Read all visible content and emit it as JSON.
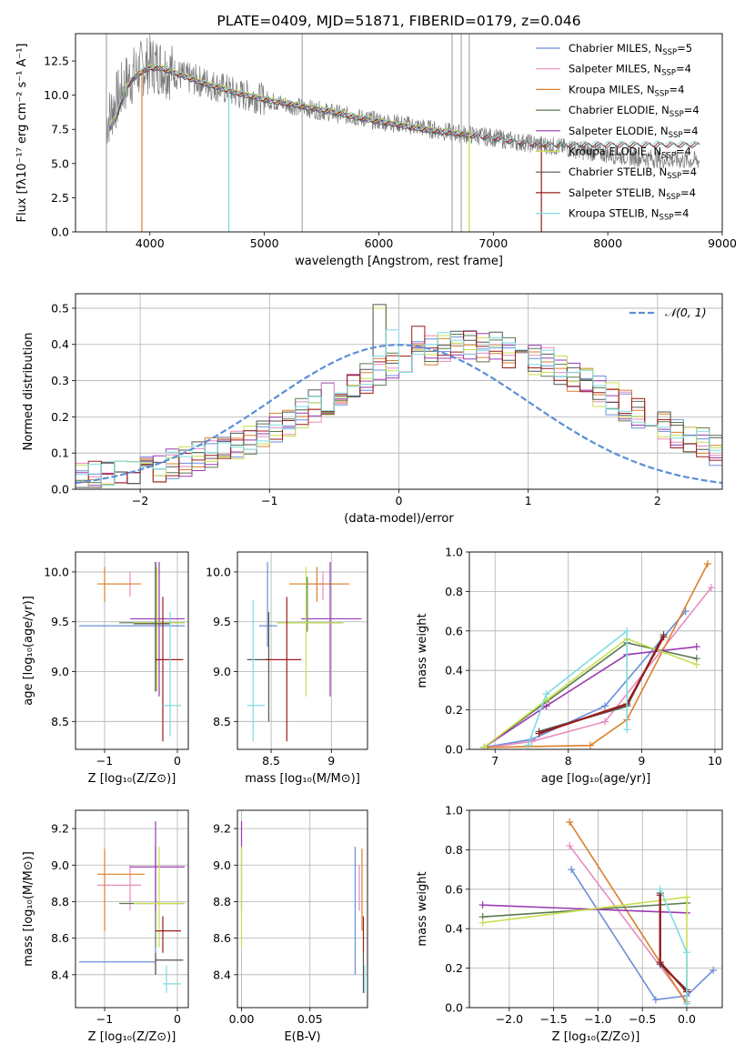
{
  "colors": {
    "Chabrier MILES": "#6a8fd8",
    "Salpeter MILES": "#e88cbf",
    "Kroupa MILES": "#d9802a",
    "Chabrier ELODIE": "#5a7a50",
    "Salpeter ELODIE": "#9a3ab0",
    "Kroupa ELODIE": "#c8e050",
    "Chabrier STELIB": "#555555",
    "Salpeter STELIB": "#9b1c1c",
    "Kroupa STELIB": "#7edbe0"
  },
  "chart_data": [
    {
      "type": "line",
      "title": "PLATE=0409, MJD=51871, FIBERID=0179, z=0.046",
      "xlabel": "wavelength [Angstrom, rest frame]",
      "ylabel": "Flux [fλ10⁻¹⁷ erg cm⁻² s⁻¹ A⁻¹]",
      "xlim": [
        3350,
        9000
      ],
      "ylim": [
        0,
        14.5
      ],
      "xticks": [
        4000,
        5000,
        6000,
        7000,
        8000,
        9000
      ],
      "yticks": [
        0.0,
        2.5,
        5.0,
        7.5,
        10.0,
        12.5
      ],
      "grid": false,
      "legend_position": "top-right",
      "legend": [
        {
          "model": "Chabrier MILES",
          "label": "Chabrier MILES, N",
          "sub": "SSP",
          "tail": "=5"
        },
        {
          "model": "Salpeter MILES",
          "label": "Salpeter MILES, N",
          "sub": "SSP",
          "tail": "=4"
        },
        {
          "model": "Kroupa MILES",
          "label": "Kroupa MILES, N",
          "sub": "SSP",
          "tail": "=4"
        },
        {
          "model": "Chabrier ELODIE",
          "label": "Chabrier ELODIE, N",
          "sub": "SSP",
          "tail": "=4"
        },
        {
          "model": "Salpeter ELODIE",
          "label": "Salpeter ELODIE, N",
          "sub": "SSP",
          "tail": "=4"
        },
        {
          "model": "Kroupa ELODIE",
          "label": "Kroupa ELODIE, N",
          "sub": "SSP",
          "tail": "=4"
        },
        {
          "model": "Chabrier STELIB",
          "label": "Chabrier STELIB, N",
          "sub": "SSP",
          "tail": "=4"
        },
        {
          "model": "Salpeter STELIB",
          "label": "Salpeter STELIB, N",
          "sub": "SSP",
          "tail": "=4"
        },
        {
          "model": "Kroupa STELIB",
          "label": "Kroupa STELIB, N",
          "sub": "SSP",
          "tail": "=4"
        }
      ],
      "data_series": {
        "name": "data",
        "x": [
          3620,
          3700,
          3800,
          3900,
          4000,
          4100,
          4200,
          4300,
          4400,
          4500,
          4600,
          4700,
          4800,
          4900,
          5000,
          5200,
          5400,
          5600,
          5800,
          6000,
          6200,
          6400,
          6600,
          6800,
          7000,
          7200,
          7400,
          7600,
          7800,
          8000,
          8200,
          8500,
          8800
        ],
        "y": [
          8.0,
          9.5,
          11.0,
          11.8,
          12.3,
          12.1,
          11.7,
          11.3,
          11.1,
          10.9,
          10.6,
          10.3,
          10.0,
          9.9,
          9.7,
          9.3,
          9.0,
          8.7,
          8.4,
          8.1,
          7.9,
          7.6,
          7.3,
          7.1,
          6.9,
          6.6,
          6.4,
          6.2,
          5.9,
          5.7,
          5.5,
          5.3,
          5.2
        ]
      },
      "model_x": [
        3650,
        3700,
        3800,
        3900,
        4000,
        4100,
        4200,
        4300,
        4400,
        4500,
        4600,
        4700,
        4800,
        4900,
        5000,
        5200,
        5400,
        5600,
        5800,
        6000,
        6200,
        6400,
        6600,
        6800,
        7000,
        7200,
        7400
      ],
      "model_y": [
        7.6,
        8.3,
        10.7,
        11.6,
        12.0,
        12.0,
        11.7,
        11.4,
        11.1,
        10.8,
        10.6,
        10.3,
        10.1,
        9.9,
        9.7,
        9.4,
        9.1,
        8.8,
        8.4,
        8.1,
        7.8,
        7.5,
        7.3,
        7.1,
        6.9,
        6.6,
        6.4
      ],
      "model_ends": {
        "Chabrier MILES": 7420,
        "Salpeter MILES": 7420,
        "Kroupa MILES": 7420,
        "Chabrier ELODIE": 6800,
        "Salpeter ELODIE": 6800,
        "Kroupa ELODIE": 6800,
        "Chabrier STELIB": 8800,
        "Salpeter STELIB": 8800,
        "Kroupa STELIB": 8800
      },
      "model_drops": [
        {
          "model": "Kroupa STELIB",
          "x": 4690
        },
        {
          "model": "Kroupa MILES",
          "x": 3930
        },
        {
          "model": "Kroupa ELODIE",
          "x": 6790
        },
        {
          "model": "Salpeter STELIB",
          "x": 7420
        }
      ],
      "data_spikes": [
        3620,
        5330,
        6640,
        6720,
        6790
      ]
    },
    {
      "type": "histogram",
      "xlabel": "(data-model)/error",
      "ylabel": "Normed distribution",
      "xlim": [
        -2.5,
        2.5
      ],
      "ylim": [
        0,
        0.54
      ],
      "xticks": [
        -2,
        -1,
        0,
        1,
        2
      ],
      "yticks": [
        0.0,
        0.1,
        0.2,
        0.3,
        0.4,
        0.5
      ],
      "grid": true,
      "legend_position": "top-right",
      "reference_curve": {
        "label": "𝒩(0, 1)",
        "mean": 0,
        "sigma": 1,
        "color": "#5b8fd6"
      },
      "bin_width": 0.1,
      "bin_start": -2.5,
      "envelope": [
        0.03,
        0.035,
        0.04,
        0.045,
        0.05,
        0.055,
        0.06,
        0.07,
        0.08,
        0.09,
        0.1,
        0.11,
        0.125,
        0.14,
        0.155,
        0.17,
        0.19,
        0.21,
        0.23,
        0.25,
        0.27,
        0.29,
        0.31,
        0.33,
        0.35,
        0.36,
        0.37,
        0.38,
        0.39,
        0.395,
        0.4,
        0.395,
        0.39,
        0.38,
        0.37,
        0.36,
        0.35,
        0.33,
        0.31,
        0.29,
        0.27,
        0.25,
        0.23,
        0.21,
        0.19,
        0.17,
        0.155,
        0.14,
        0.125,
        0.11
      ],
      "peak_bins": [
        {
          "model": "Chabrier STELIB",
          "x": -0.2,
          "y": 0.51
        },
        {
          "model": "Kroupa ELODIE",
          "x": -0.2,
          "y": 0.5
        },
        {
          "model": "Kroupa STELIB",
          "x": -0.1,
          "y": 0.44
        },
        {
          "model": "Salpeter STELIB",
          "x": 0.1,
          "y": 0.45
        },
        {
          "model": "Salpeter MILES",
          "x": 0.7,
          "y": 0.4
        }
      ]
    },
    {
      "type": "errorbar",
      "xlabel": "Z [log₁₀(Z/Z⊙)]",
      "ylabel": "age  [log₁₀(age/yr)]",
      "xlim": [
        -1.4,
        0.15
      ],
      "ylim": [
        8.22,
        10.2
      ],
      "xticks": [
        -1,
        0
      ],
      "yticks": [
        8.5,
        9.0,
        9.5,
        10.0
      ],
      "grid": true,
      "points": [
        {
          "model": "Chabrier MILES",
          "x": -0.3,
          "y": 9.46,
          "xl": -1.35,
          "xh": 0.1,
          "yl": 8.8,
          "yh": 10.1
        },
        {
          "model": "Salpeter MILES",
          "x": -0.65,
          "y": 9.88,
          "xl": -1.0,
          "xh": -0.65,
          "yl": 9.75,
          "yh": 10.0
        },
        {
          "model": "Kroupa MILES",
          "x": -1.0,
          "y": 9.88,
          "xl": -1.1,
          "xh": -0.5,
          "yl": 9.7,
          "yh": 10.05
        },
        {
          "model": "Chabrier ELODIE",
          "x": -0.3,
          "y": 9.49,
          "xl": -0.8,
          "xh": 0.1,
          "yl": 8.8,
          "yh": 10.1
        },
        {
          "model": "Salpeter ELODIE",
          "x": -0.25,
          "y": 9.53,
          "xl": -0.65,
          "xh": 0.1,
          "yl": 8.75,
          "yh": 10.1
        },
        {
          "model": "Kroupa ELODIE",
          "x": -0.28,
          "y": 9.49,
          "xl": -0.6,
          "xh": 0.1,
          "yl": 8.8,
          "yh": 10.05
        },
        {
          "model": "Chabrier STELIB",
          "x": -0.3,
          "y": 9.48,
          "xl": -0.6,
          "xh": -0.1,
          "yl": 8.8,
          "yh": 10.1
        },
        {
          "model": "Salpeter STELIB",
          "x": -0.2,
          "y": 9.12,
          "xl": -0.3,
          "xh": 0.08,
          "yl": 8.3,
          "yh": 9.75
        },
        {
          "model": "Kroupa STELIB",
          "x": -0.1,
          "y": 8.66,
          "xl": -0.2,
          "xh": 0.05,
          "yl": 8.35,
          "yh": 9.6
        }
      ]
    },
    {
      "type": "errorbar",
      "xlabel": "mass [log₁₀(M/M⊙)]",
      "ylabel": "",
      "xlim": [
        8.22,
        9.3
      ],
      "ylim": [
        8.22,
        10.2
      ],
      "xticks": [
        8.5,
        9.0
      ],
      "yticks": [
        8.5,
        9.0,
        9.5,
        10.0
      ],
      "grid": true,
      "points": [
        {
          "model": "Chabrier MILES",
          "x": 8.47,
          "y": 9.46,
          "xl": 8.4,
          "xh": 8.55,
          "yl": 9.25,
          "yh": 10.1
        },
        {
          "model": "Salpeter MILES",
          "x": 8.93,
          "y": 9.88,
          "xl": 8.75,
          "xh": 9.15,
          "yl": 9.72,
          "yh": 10.0
        },
        {
          "model": "Kroupa MILES",
          "x": 8.88,
          "y": 9.88,
          "xl": 8.65,
          "xh": 9.15,
          "yl": 9.7,
          "yh": 10.05
        },
        {
          "model": "Chabrier ELODIE",
          "x": 8.8,
          "y": 9.49,
          "xl": 8.55,
          "xh": 9.1,
          "yl": 9.4,
          "yh": 9.95
        },
        {
          "model": "Salpeter ELODIE",
          "x": 8.99,
          "y": 9.53,
          "xl": 8.75,
          "xh": 9.25,
          "yl": 8.75,
          "yh": 10.1
        },
        {
          "model": "Kroupa ELODIE",
          "x": 8.79,
          "y": 9.49,
          "xl": 8.55,
          "xh": 9.1,
          "yl": 8.75,
          "yh": 10.05
        },
        {
          "model": "Chabrier STELIB",
          "x": 8.48,
          "y": 9.12,
          "xl": 8.3,
          "xh": 8.5,
          "yl": 8.5,
          "yh": 9.6
        },
        {
          "model": "Salpeter STELIB",
          "x": 8.63,
          "y": 9.12,
          "xl": 8.45,
          "xh": 8.75,
          "yl": 8.3,
          "yh": 9.75
        },
        {
          "model": "Kroupa STELIB",
          "x": 8.35,
          "y": 8.66,
          "xl": 8.3,
          "xh": 8.45,
          "yl": 8.3,
          "yh": 9.72
        }
      ]
    },
    {
      "type": "line",
      "xlabel": "age  [log₁₀(age/yr)]",
      "ylabel": "mass weight",
      "xlim": [
        6.65,
        10.1
      ],
      "ylim": [
        0,
        1.0
      ],
      "xticks": [
        7,
        8,
        9,
        10
      ],
      "yticks": [
        0.0,
        0.2,
        0.4,
        0.6,
        0.8,
        1.0
      ],
      "grid": true,
      "series": [
        {
          "model": "Chabrier MILES",
          "x": [
            6.85,
            7.5,
            8.5,
            9.6
          ],
          "y": [
            0.01,
            0.05,
            0.22,
            0.7
          ]
        },
        {
          "model": "Salpeter MILES",
          "x": [
            6.9,
            7.5,
            8.5,
            9.95
          ],
          "y": [
            0.01,
            0.04,
            0.14,
            0.82
          ]
        },
        {
          "model": "Kroupa MILES",
          "x": [
            6.9,
            8.3,
            8.8,
            9.9
          ],
          "y": [
            0.01,
            0.02,
            0.15,
            0.94
          ]
        },
        {
          "model": "Chabrier ELODIE",
          "x": [
            6.85,
            7.7,
            8.8,
            9.75
          ],
          "y": [
            0.01,
            0.24,
            0.54,
            0.46
          ]
        },
        {
          "model": "Salpeter ELODIE",
          "x": [
            6.85,
            7.7,
            8.8,
            9.75
          ],
          "y": [
            0.01,
            0.22,
            0.48,
            0.52
          ]
        },
        {
          "model": "Kroupa ELODIE",
          "x": [
            6.85,
            7.7,
            8.8,
            9.75
          ],
          "y": [
            0.01,
            0.25,
            0.56,
            0.43
          ]
        },
        {
          "model": "Chabrier STELIB",
          "x": [
            7.6,
            8.8,
            9.3
          ],
          "y": [
            0.09,
            0.22,
            0.58
          ]
        },
        {
          "model": "Salpeter STELIB",
          "x": [
            7.6,
            8.8,
            9.3
          ],
          "y": [
            0.08,
            0.23,
            0.57
          ]
        },
        {
          "model": "Kroupa STELIB",
          "x": [
            7.45,
            7.7,
            8.8,
            8.8
          ],
          "y": [
            0.02,
            0.28,
            0.6,
            0.1
          ]
        }
      ]
    },
    {
      "type": "errorbar",
      "xlabel": "Z [log₁₀(Z/Z⊙)]",
      "ylabel": "mass [log₁₀(M/M⊙)]",
      "xlim": [
        -1.4,
        0.15
      ],
      "ylim": [
        8.22,
        9.3
      ],
      "xticks": [
        -1,
        0
      ],
      "yticks": [
        8.4,
        8.6,
        8.8,
        9.0,
        9.2
      ],
      "grid": true,
      "points": [
        {
          "model": "Chabrier MILES",
          "x": -0.3,
          "y": 8.47,
          "xl": -1.35,
          "xh": -0.3,
          "yl": 8.4,
          "yh": 8.55
        },
        {
          "model": "Salpeter MILES",
          "x": -0.65,
          "y": 8.89,
          "xl": -1.1,
          "xh": -0.5,
          "yl": 8.75,
          "yh": 9.0
        },
        {
          "model": "Kroupa MILES",
          "x": -1.0,
          "y": 8.95,
          "xl": -1.1,
          "xh": -0.45,
          "yl": 8.64,
          "yh": 9.09
        },
        {
          "model": "Chabrier ELODIE",
          "x": -0.3,
          "y": 8.79,
          "xl": -0.8,
          "xh": 0.1,
          "yl": 8.55,
          "yh": 9.1
        },
        {
          "model": "Salpeter ELODIE",
          "x": -0.3,
          "y": 8.99,
          "xl": -0.65,
          "xh": 0.1,
          "yl": 8.75,
          "yh": 9.24
        },
        {
          "model": "Kroupa ELODIE",
          "x": -0.25,
          "y": 8.79,
          "xl": -0.6,
          "xh": 0.1,
          "yl": 8.55,
          "yh": 9.1
        },
        {
          "model": "Chabrier STELIB",
          "x": -0.3,
          "y": 8.48,
          "xl": -0.3,
          "xh": 0.08,
          "yl": 8.4,
          "yh": 8.52
        },
        {
          "model": "Salpeter STELIB",
          "x": -0.2,
          "y": 8.64,
          "xl": -0.3,
          "xh": 0.05,
          "yl": 8.52,
          "yh": 8.72
        },
        {
          "model": "Kroupa STELIB",
          "x": -0.15,
          "y": 8.35,
          "xl": -0.2,
          "xh": 0.05,
          "yl": 8.3,
          "yh": 8.45
        }
      ]
    },
    {
      "type": "errorbar",
      "xlabel": "E(B-V)",
      "ylabel": "",
      "xlim": [
        -0.003,
        0.092
      ],
      "ylim": [
        8.22,
        9.3
      ],
      "xticks": [
        0.0,
        0.05
      ],
      "tick_labels": [
        "0.00",
        "0.05"
      ],
      "yticks": [
        8.4,
        8.6,
        8.8,
        9.0,
        9.2
      ],
      "grid": true,
      "points": [
        {
          "model": "Chabrier MILES",
          "x": 0.083,
          "yl": 8.4,
          "yh": 9.1
        },
        {
          "model": "Kroupa MILES",
          "x": 0.088,
          "yl": 8.64,
          "yh": 9.09
        },
        {
          "model": "Salpeter MILES",
          "x": 0.086,
          "yl": 8.75,
          "yh": 9.0
        },
        {
          "model": "Salpeter ELODIE",
          "x": 0.0,
          "yl": 8.75,
          "yh": 9.24
        },
        {
          "model": "Kroupa ELODIE",
          "x": 0.0,
          "yl": 8.55,
          "yh": 9.1
        },
        {
          "model": "Chabrier STELIB",
          "x": 0.089,
          "yl": 8.3,
          "yh": 8.52
        },
        {
          "model": "Salpeter STELIB",
          "x": 0.089,
          "yl": 8.52,
          "yh": 8.72
        },
        {
          "model": "Kroupa STELIB",
          "x": 0.09,
          "yl": 8.3,
          "yh": 8.45
        }
      ]
    },
    {
      "type": "line",
      "xlabel": "Z [log₁₀(Z/Z⊙)]",
      "ylabel": "mass weight",
      "xlim": [
        -2.45,
        0.4
      ],
      "ylim": [
        0,
        1.0
      ],
      "xticks": [
        -2.0,
        -1.5,
        -1.0,
        -0.5,
        0.0
      ],
      "tick_labels": [
        "−2.0",
        "−1.5",
        "−1.0",
        "−0.5",
        "0.0"
      ],
      "yticks": [
        0.0,
        0.2,
        0.4,
        0.6,
        0.8,
        1.0
      ],
      "grid": true,
      "series": [
        {
          "model": "Chabrier MILES",
          "x": [
            -1.3,
            -0.35,
            0.0,
            0.3
          ],
          "y": [
            0.7,
            0.04,
            0.06,
            0.19
          ]
        },
        {
          "model": "Salpeter MILES",
          "x": [
            -1.32,
            0.0
          ],
          "y": [
            0.82,
            0.03
          ]
        },
        {
          "model": "Kroupa MILES",
          "x": [
            -1.32,
            0.0
          ],
          "y": [
            0.94,
            0.02
          ]
        },
        {
          "model": "Chabrier ELODIE",
          "x": [
            -2.3,
            0.0
          ],
          "y": [
            0.46,
            0.53
          ]
        },
        {
          "model": "Salpeter ELODIE",
          "x": [
            -2.3,
            0.0
          ],
          "y": [
            0.52,
            0.48
          ]
        },
        {
          "model": "Kroupa ELODIE",
          "x": [
            -2.3,
            0.0,
            0.0
          ],
          "y": [
            0.43,
            0.56,
            0.02
          ]
        },
        {
          "model": "Chabrier STELIB",
          "x": [
            -0.3,
            -0.3,
            0.0
          ],
          "y": [
            0.58,
            0.22,
            0.09
          ]
        },
        {
          "model": "Salpeter STELIB",
          "x": [
            -0.3,
            -0.3,
            0.0
          ],
          "y": [
            0.57,
            0.23,
            0.08
          ]
        },
        {
          "model": "Kroupa STELIB",
          "x": [
            -0.3,
            0.0,
            0.0
          ],
          "y": [
            0.6,
            0.28,
            0.02
          ]
        }
      ]
    }
  ]
}
